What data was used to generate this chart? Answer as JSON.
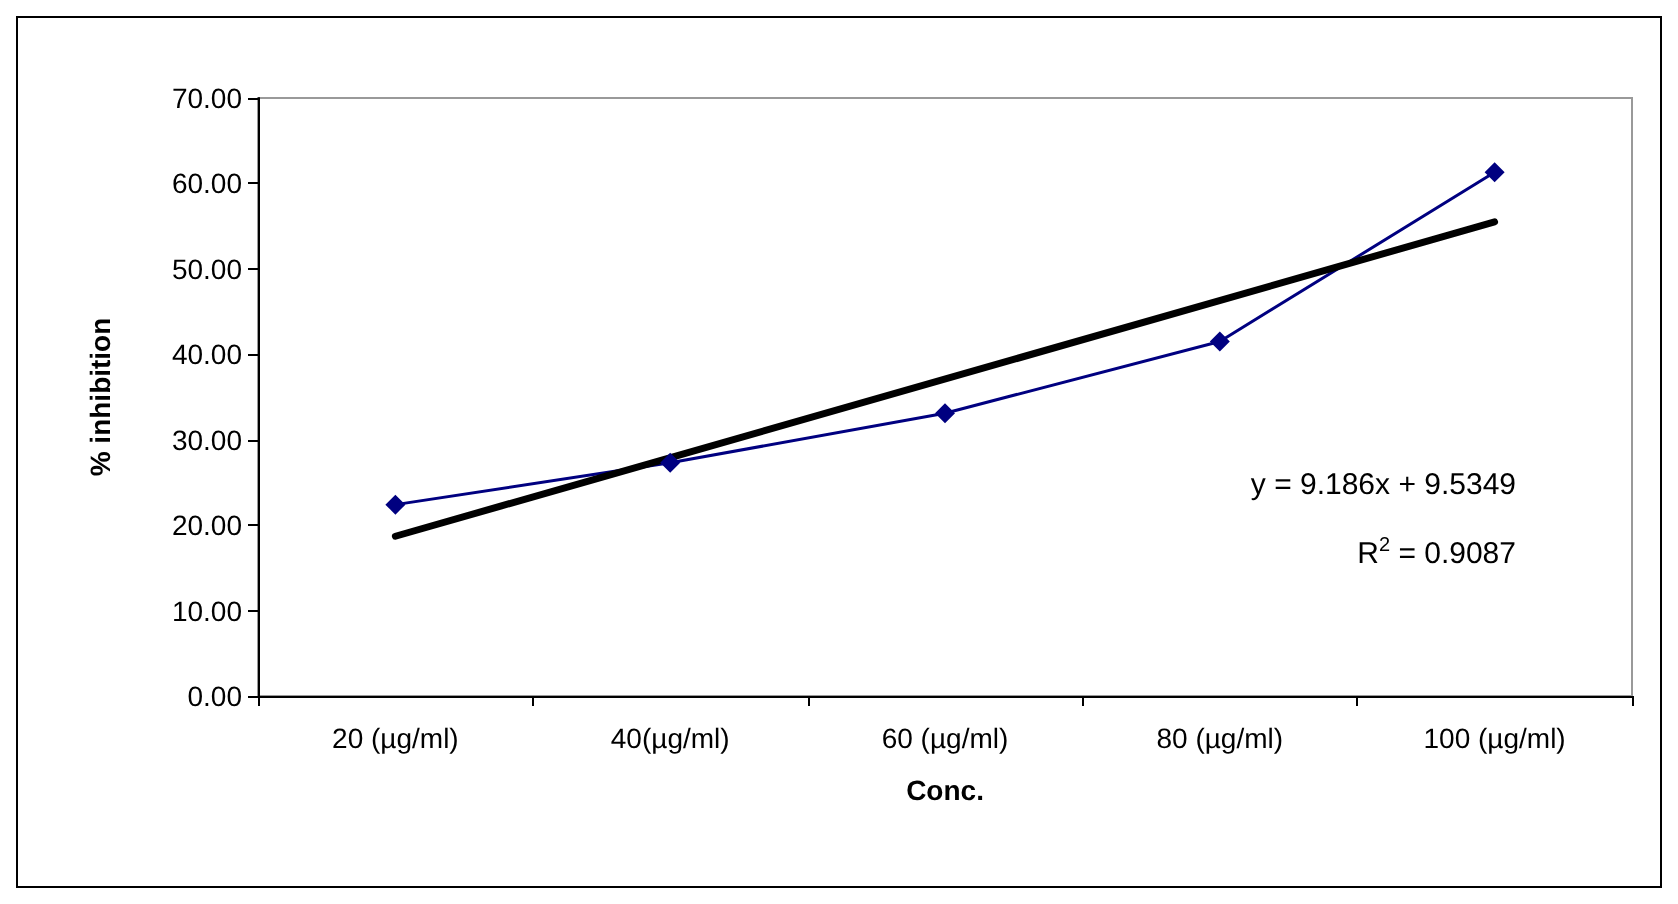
{
  "chart_data": {
    "type": "line",
    "xlabel": "Conc.",
    "ylabel": "% inhibition",
    "categories": [
      "20 (µg/ml)",
      "40(µg/ml)",
      "60 (µg/ml)",
      "80 (µg/ml)",
      "100 (µg/ml)"
    ],
    "series": [
      {
        "color": "#000080",
        "values": [
          22.4,
          27.3,
          33.1,
          41.5,
          61.3
        ],
        "marker": "diamond",
        "line_style": "solid"
      },
      {
        "type": "line",
        "color": "#000000",
        "x": [
          "20 (µg/ml)",
          "100 (µg/ml)"
        ],
        "values": [
          18.7,
          55.5
        ],
        "marker": "none"
      }
    ],
    "ylim": [
      0,
      70
    ],
    "yticks": [
      {
        "value": 0,
        "label": "0.00"
      },
      {
        "value": 10,
        "label": "10.00"
      },
      {
        "value": 20,
        "label": "20.00"
      },
      {
        "value": 30,
        "label": "30.00"
      },
      {
        "value": 40,
        "label": "40.00"
      },
      {
        "value": 50,
        "label": "50.00"
      },
      {
        "value": 60,
        "label": "60.00"
      },
      {
        "value": 70,
        "label": "70.00"
      }
    ],
    "grid": false,
    "annotations": [
      "y = 9.186x + 9.5349",
      "R$^{2}$ = 0.9087"
    ]
  }
}
